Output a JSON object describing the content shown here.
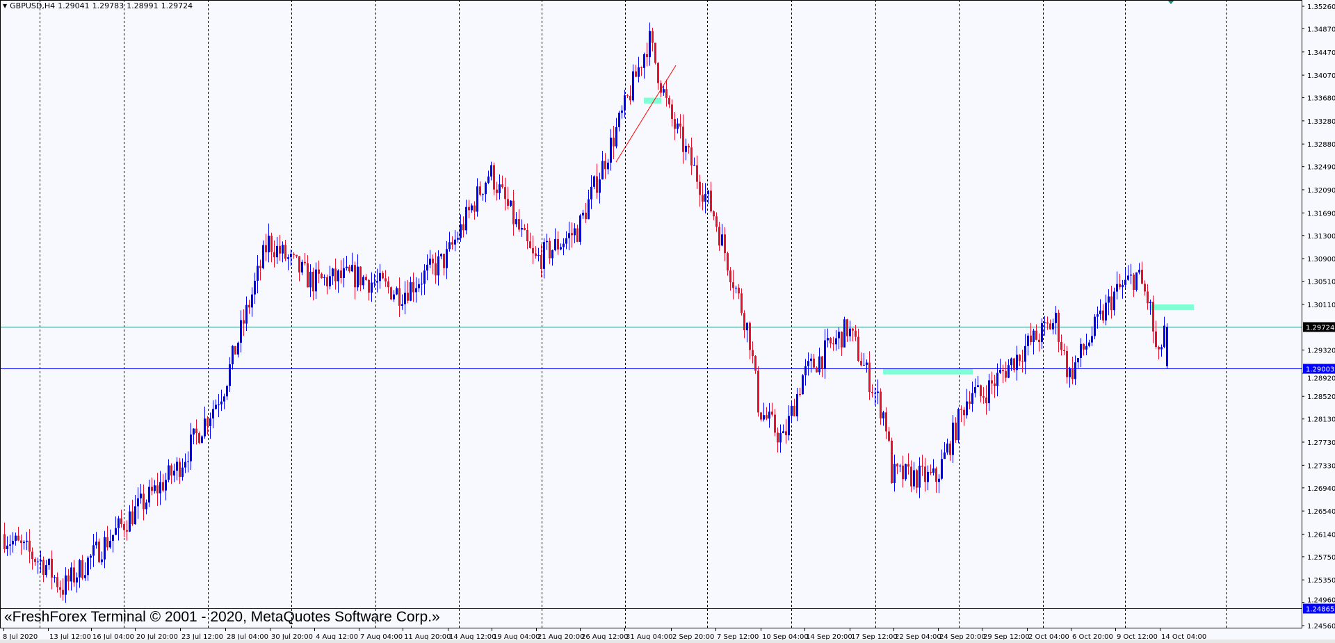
{
  "header": {
    "symbol_timeframe": "GBPUSD,H4",
    "open": "1.29041",
    "high": "1.29783",
    "low": "1.28991",
    "close": "1.29724"
  },
  "watermark": "«FreshForex Terminal © 2001 - 2020, MetaQuotes Software Corp.»",
  "colors": {
    "background": "#f8f8ff",
    "bull_candle": "#0000ff",
    "bear_candle": "#e8102a",
    "zone": "#7fffd4",
    "bid_line": "#2e8b7a",
    "hline": "#0000ff",
    "trendline": "#ff0000",
    "grid": "#000000"
  },
  "chart_data": {
    "type": "candlestick",
    "symbol": "GBPUSD",
    "timeframe": "H4",
    "grid": "vertical dashed",
    "ylim": [
      1.2456,
      1.3526
    ],
    "price_ticks": [
      "1.35260",
      "1.34870",
      "1.34470",
      "1.34070",
      "1.33680",
      "1.33280",
      "1.32880",
      "1.32490",
      "1.32090",
      "1.31690",
      "1.31300",
      "1.30900",
      "1.30510",
      "1.30110",
      "1.29320",
      "1.28920",
      "1.28520",
      "1.28130",
      "1.27730",
      "1.27330",
      "1.26940",
      "1.26540",
      "1.26140",
      "1.25750",
      "1.25350",
      "1.24960",
      "1.24560"
    ],
    "time_ticks": [
      "8 Jul 2020",
      "13 Jul 12:00",
      "16 Jul 04:00",
      "20 Jul 20:00",
      "23 Jul 12:00",
      "28 Jul 04:00",
      "30 Jul 20:00",
      "4 Aug 12:00",
      "7 Aug 04:00",
      "11 Aug 20:00",
      "14 Aug 12:00",
      "19 Aug 04:00",
      "21 Aug 20:00",
      "26 Aug 12:00",
      "31 Aug 04:00",
      "2 Sep 20:00",
      "7 Sep 12:00",
      "10 Sep 04:00",
      "14 Sep 20:00",
      "17 Sep 12:00",
      "22 Sep 04:00",
      "24 Sep 20:00",
      "29 Sep 12:00",
      "2 Oct 04:00",
      "6 Oct 20:00",
      "9 Oct 12:00",
      "14 Oct 04:00"
    ],
    "approx_close_path": [
      {
        "time": "8 Jul 2020",
        "close": 1.2614
      },
      {
        "time": "13 Jul 12:00",
        "close": 1.256
      },
      {
        "time": "14 Jul 04:00",
        "close": 1.252
      },
      {
        "time": "16 Jul 04:00",
        "close": 1.257
      },
      {
        "time": "20 Jul 20:00",
        "close": 1.265
      },
      {
        "time": "23 Jul 12:00",
        "close": 1.273
      },
      {
        "time": "28 Jul 04:00",
        "close": 1.2865
      },
      {
        "time": "30 Jul 20:00",
        "close": 1.312
      },
      {
        "time": "4 Aug 12:00",
        "close": 1.305
      },
      {
        "time": "7 Aug 04:00",
        "close": 1.306
      },
      {
        "time": "11 Aug 20:00",
        "close": 1.303
      },
      {
        "time": "14 Aug 12:00",
        "close": 1.309
      },
      {
        "time": "19 Aug 04:00",
        "close": 1.3241
      },
      {
        "time": "21 Aug 20:00",
        "close": 1.3085
      },
      {
        "time": "26 Aug 12:00",
        "close": 1.314
      },
      {
        "time": "31 Aug 04:00",
        "close": 1.334
      },
      {
        "time": "1 Sep 12:00",
        "close": 1.347
      },
      {
        "time": "2 Sep 20:00",
        "close": 1.334
      },
      {
        "time": "7 Sep 12:00",
        "close": 1.3167
      },
      {
        "time": "9 Sep 04:00",
        "close": 1.296
      },
      {
        "time": "10 Sep 04:00",
        "close": 1.283
      },
      {
        "time": "10 Sep 20:00",
        "close": 1.2776
      },
      {
        "time": "14 Sep 20:00",
        "close": 1.2887
      },
      {
        "time": "17 Sep 12:00",
        "close": 1.297
      },
      {
        "time": "18 Sep 12:00",
        "close": 1.2814
      },
      {
        "time": "22 Sep 04:00",
        "close": 1.2717
      },
      {
        "time": "24 Sep 20:00",
        "close": 1.271
      },
      {
        "time": "28 Sep 00:00",
        "close": 1.2866
      },
      {
        "time": "29 Sep 12:00",
        "close": 1.285
      },
      {
        "time": "2 Oct 04:00",
        "close": 1.2937
      },
      {
        "time": "5 Oct 04:00",
        "close": 1.2983
      },
      {
        "time": "6 Oct 20:00",
        "close": 1.2887
      },
      {
        "time": "9 Oct 12:00",
        "close": 1.3027
      },
      {
        "time": "12 Oct 00:00",
        "close": 1.3063
      },
      {
        "time": "13 Oct 04:00",
        "close": 1.301
      },
      {
        "time": "14 Oct 04:00",
        "close": 1.2905
      },
      {
        "time": "14 Oct 12:00",
        "close": 1.29724
      }
    ],
    "last_bar": {
      "open": 1.29041,
      "high": 1.29783,
      "low": 1.28991,
      "close": 1.29724
    },
    "horizontal_lines": [
      {
        "price": "1.29724",
        "kind": "bid"
      },
      {
        "price": "1.29003",
        "kind": "level"
      },
      {
        "price": "1.24865",
        "kind": "level"
      }
    ],
    "zones": [
      {
        "from": 1.3368,
        "to": 1.3358
      },
      {
        "from": 1.29,
        "to": 1.289
      },
      {
        "from": 1.3011,
        "to": 1.3001
      }
    ],
    "trendline": {
      "from_price": 1.3225,
      "to_price": 1.3425
    }
  }
}
